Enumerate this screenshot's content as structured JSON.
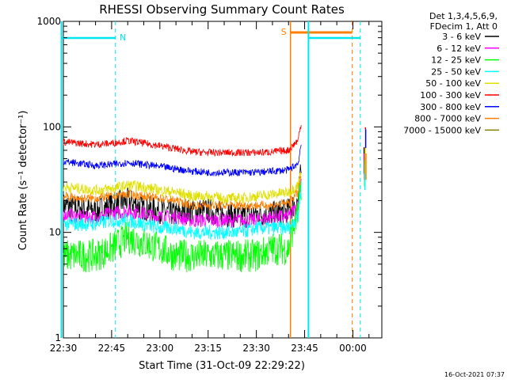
{
  "chart_data": {
    "type": "line",
    "title": "RHESSI Observing Summary Count Rates",
    "xlabel": "Start Time (31-Oct-09 22:29:22)",
    "ylabel": "Count Rate (s⁻¹ detector⁻¹)",
    "yscale": "log",
    "ylim": [
      1,
      1000
    ],
    "xlim": [
      "22:29:22",
      "00:09:00"
    ],
    "x_ticks": [
      "22:30",
      "22:45",
      "23:00",
      "23:15",
      "23:30",
      "23:45",
      "00:00"
    ],
    "y_ticks": [
      "1",
      "10",
      "100",
      "1000"
    ],
    "legend_position": "right",
    "legend_header": [
      "Det 1,3,4,5,6,9,",
      "FDecim 1, Att 0"
    ],
    "series": [
      {
        "name": "3 - 6 keV",
        "color": "#000000",
        "values": [
          [
            0,
            18
          ],
          [
            5,
            17
          ],
          [
            10,
            16
          ],
          [
            15,
            18
          ],
          [
            20,
            20
          ],
          [
            25,
            17
          ],
          [
            30,
            16
          ],
          [
            35,
            15
          ],
          [
            40,
            16
          ],
          [
            45,
            16
          ],
          [
            50,
            15
          ],
          [
            55,
            14
          ],
          [
            60,
            15
          ],
          [
            65,
            15
          ],
          [
            70,
            16
          ],
          [
            73,
            20
          ],
          [
            74,
            40
          ]
        ]
      },
      {
        "name": "6 - 12 keV",
        "color": "#ff00ff",
        "values": [
          [
            0,
            15
          ],
          [
            5,
            14
          ],
          [
            10,
            14
          ],
          [
            15,
            15
          ],
          [
            20,
            16
          ],
          [
            25,
            15
          ],
          [
            30,
            14
          ],
          [
            35,
            14
          ],
          [
            40,
            13
          ],
          [
            45,
            13
          ],
          [
            50,
            13
          ],
          [
            55,
            13
          ],
          [
            60,
            13
          ],
          [
            65,
            14
          ],
          [
            70,
            14
          ],
          [
            73,
            18
          ],
          [
            74,
            35
          ]
        ]
      },
      {
        "name": "12 - 25 keV",
        "color": "#00ff00",
        "values": [
          [
            0,
            6
          ],
          [
            5,
            6
          ],
          [
            10,
            6
          ],
          [
            15,
            7
          ],
          [
            20,
            9
          ],
          [
            25,
            8
          ],
          [
            30,
            7
          ],
          [
            35,
            6
          ],
          [
            40,
            6
          ],
          [
            45,
            6
          ],
          [
            50,
            6
          ],
          [
            55,
            6
          ],
          [
            60,
            6
          ],
          [
            65,
            7
          ],
          [
            70,
            7
          ],
          [
            73,
            15
          ],
          [
            74,
            30
          ]
        ]
      },
      {
        "name": "25 - 50 keV",
        "color": "#00ffff",
        "values": [
          [
            0,
            12
          ],
          [
            5,
            12
          ],
          [
            10,
            12
          ],
          [
            15,
            13
          ],
          [
            20,
            13
          ],
          [
            25,
            12
          ],
          [
            30,
            11
          ],
          [
            35,
            11
          ],
          [
            40,
            10
          ],
          [
            45,
            10
          ],
          [
            50,
            10
          ],
          [
            55,
            10
          ],
          [
            60,
            11
          ],
          [
            65,
            11
          ],
          [
            70,
            11
          ],
          [
            73,
            14
          ],
          [
            74,
            28
          ]
        ]
      },
      {
        "name": "50 - 100 keV",
        "color": "#e0e000",
        "values": [
          [
            0,
            27
          ],
          [
            5,
            26
          ],
          [
            10,
            25
          ],
          [
            15,
            26
          ],
          [
            20,
            28
          ],
          [
            25,
            27
          ],
          [
            30,
            25
          ],
          [
            35,
            24
          ],
          [
            40,
            22
          ],
          [
            45,
            22
          ],
          [
            50,
            21
          ],
          [
            55,
            21
          ],
          [
            60,
            22
          ],
          [
            65,
            23
          ],
          [
            70,
            24
          ],
          [
            73,
            28
          ],
          [
            74,
            40
          ]
        ]
      },
      {
        "name": "100 - 300 keV",
        "color": "#ff0000",
        "values": [
          [
            0,
            72
          ],
          [
            5,
            70
          ],
          [
            10,
            68
          ],
          [
            15,
            70
          ],
          [
            20,
            74
          ],
          [
            25,
            70
          ],
          [
            30,
            66
          ],
          [
            35,
            62
          ],
          [
            40,
            58
          ],
          [
            45,
            57
          ],
          [
            50,
            57
          ],
          [
            55,
            57
          ],
          [
            60,
            57
          ],
          [
            65,
            58
          ],
          [
            70,
            60
          ],
          [
            73,
            75
          ],
          [
            74,
            110
          ]
        ]
      },
      {
        "name": "300 - 800 keV",
        "color": "#0000ff",
        "values": [
          [
            0,
            47
          ],
          [
            5,
            45
          ],
          [
            10,
            43
          ],
          [
            15,
            44
          ],
          [
            20,
            46
          ],
          [
            25,
            44
          ],
          [
            30,
            42
          ],
          [
            35,
            40
          ],
          [
            40,
            38
          ],
          [
            45,
            37
          ],
          [
            50,
            37
          ],
          [
            55,
            37
          ],
          [
            60,
            37
          ],
          [
            65,
            38
          ],
          [
            70,
            39
          ],
          [
            73,
            45
          ],
          [
            74,
            70
          ]
        ]
      },
      {
        "name": "800 - 7000 keV",
        "color": "#ff8000",
        "values": [
          [
            0,
            22
          ],
          [
            5,
            21
          ],
          [
            10,
            21
          ],
          [
            15,
            22
          ],
          [
            20,
            23
          ],
          [
            25,
            22
          ],
          [
            30,
            21
          ],
          [
            35,
            20
          ],
          [
            40,
            18
          ],
          [
            45,
            18
          ],
          [
            50,
            18
          ],
          [
            55,
            18
          ],
          [
            60,
            18
          ],
          [
            65,
            18
          ],
          [
            70,
            19
          ],
          [
            73,
            24
          ],
          [
            74,
            35
          ]
        ]
      },
      {
        "name": "7000 - 15000 keV",
        "color": "#808000",
        "values": []
      }
    ],
    "annotations": {
      "n_label": "N",
      "s_label": "S",
      "timestamp": "16-Oct-2021 07:37"
    }
  }
}
